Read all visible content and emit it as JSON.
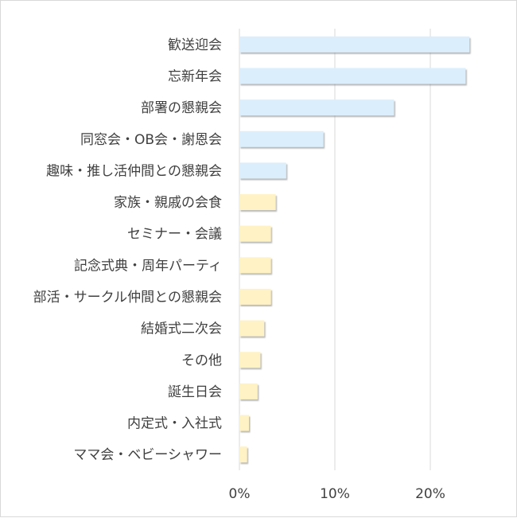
{
  "chart_data": {
    "type": "bar",
    "orientation": "horizontal",
    "title": "",
    "xlabel": "",
    "ylabel": "",
    "categories": [
      "歓送迎会",
      "忘新年会",
      "部署の懇親会",
      "同窓会・OB会・謝恩会",
      "趣味・推し活仲間との懇親会",
      "家族・親戚の会食",
      "セミナー・会議",
      "記念式典・周年パーティ",
      "部活・サークル仲間との懇親会",
      "結婚式二次会",
      "その他",
      "誕生日会",
      "内定式・入社式",
      "ママ会・ベビーシャワー"
    ],
    "values": [
      24.1,
      23.7,
      16.2,
      8.8,
      4.9,
      3.8,
      3.3,
      3.3,
      3.3,
      2.6,
      2.2,
      1.9,
      1.0,
      0.8
    ],
    "group_colors": {
      "blue": "#dbeefc",
      "yellow": "#fff2c4"
    },
    "highlight_count": 5,
    "xlim": [
      0,
      27.5
    ],
    "xticks": [
      0,
      10,
      20
    ],
    "xtick_labels": [
      "0%",
      "10%",
      "20%"
    ],
    "grid": true,
    "legend": "none"
  }
}
